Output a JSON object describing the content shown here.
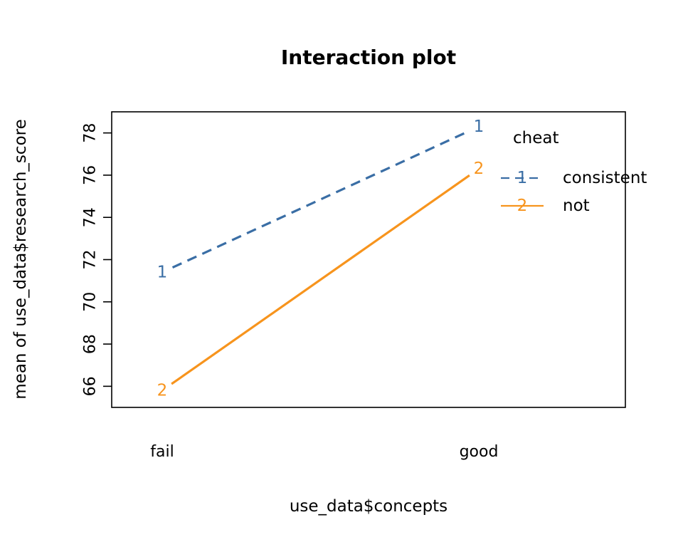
{
  "chart_data": {
    "type": "line",
    "title": "Interaction plot",
    "xlabel": "use_data$concepts",
    "ylabel": "mean of  use_data$research_score",
    "categories": [
      "fail",
      "good"
    ],
    "ylim": [
      65,
      79
    ],
    "yticks": [
      66,
      68,
      70,
      72,
      74,
      76,
      78
    ],
    "grid": false,
    "legend": {
      "title": "cheat",
      "placement": "top-right",
      "entries": [
        {
          "marker": "1",
          "label": "consistent"
        },
        {
          "marker": "2",
          "label": "not"
        }
      ]
    },
    "series": [
      {
        "name": "consistent",
        "marker": "1",
        "color": "#3a6ea5",
        "dash": "dashed",
        "values": [
          71.4,
          78.3
        ]
      },
      {
        "name": "not",
        "marker": "2",
        "color": "#f7941d",
        "dash": "solid",
        "values": [
          65.8,
          76.3
        ]
      }
    ]
  }
}
